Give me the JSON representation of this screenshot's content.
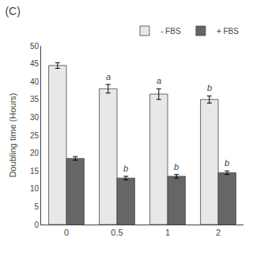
{
  "chart_data": {
    "type": "bar",
    "title": "(C)",
    "categories": [
      "0",
      "0.5",
      "1",
      "2"
    ],
    "series": [
      {
        "name": "- FBS",
        "color": "#e8e8e8",
        "values": [
          44.5,
          38.0,
          36.5,
          35.0
        ],
        "errors": [
          0.8,
          1.2,
          1.5,
          1.0
        ],
        "labels": [
          null,
          "a",
          "a",
          "b"
        ]
      },
      {
        "name": "+ FBS",
        "color": "#666666",
        "values": [
          18.5,
          13.0,
          13.5,
          14.5
        ],
        "errors": [
          0.5,
          0.5,
          0.5,
          0.5
        ],
        "labels": [
          null,
          "b",
          "b",
          "b"
        ]
      }
    ],
    "ylabel": "Doubling time (Hours)",
    "ylim": [
      0,
      50
    ],
    "yticks": [
      0,
      5,
      10,
      15,
      20,
      25,
      30,
      35,
      40,
      45,
      50
    ],
    "grid": false,
    "legend": "upper right"
  }
}
